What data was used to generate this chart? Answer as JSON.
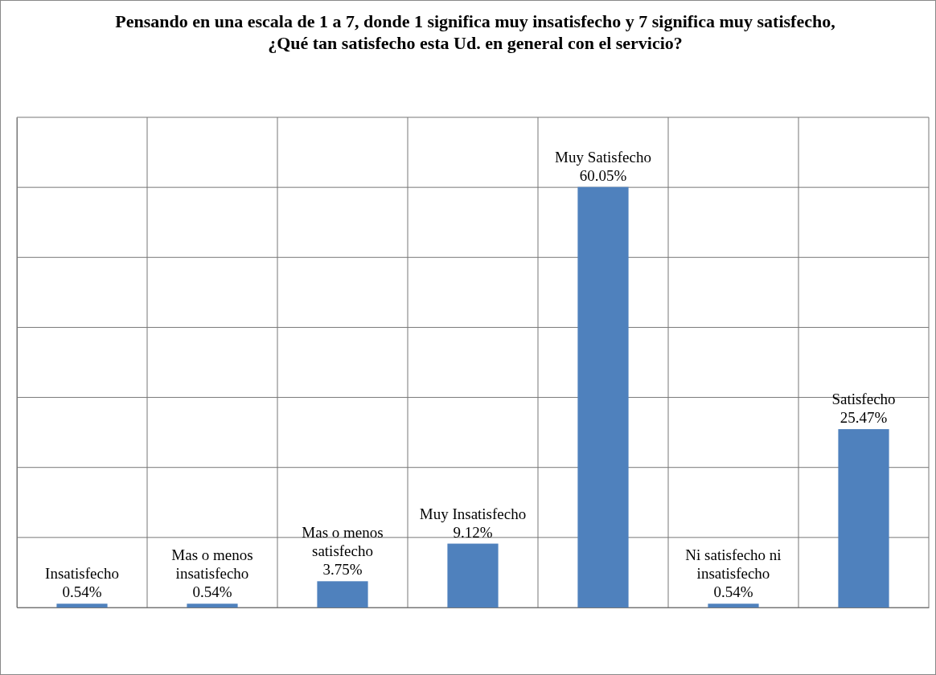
{
  "chart_data": {
    "type": "bar",
    "title": "Pensando en una escala de 1 a 7, donde 1 significa muy insatisfecho y 7 significa muy satisfecho,  ¿Qué tan satisfecho esta Ud. en general con el servicio?",
    "categories": [
      "Insatisfecho",
      "Mas o menos insatisfecho",
      "Mas o menos satisfecho",
      "Muy Insatisfecho",
      "Muy Satisfecho",
      "Ni satisfecho ni insatisfecho",
      "Satisfecho"
    ],
    "values": [
      0.54,
      0.54,
      3.75,
      9.12,
      60.05,
      0.54,
      25.47
    ],
    "value_labels": [
      "0.54%",
      "0.54%",
      "3.75%",
      "9.12%",
      "60.05%",
      "0.54%",
      "25.47%"
    ],
    "color": "#4f81bd",
    "ylim": [
      0,
      70
    ],
    "yticks": [
      {
        "value": 0,
        "label": null
      },
      {
        "value": 10,
        "label": null
      },
      {
        "value": 20,
        "label": null
      },
      {
        "value": 30,
        "label": null
      },
      {
        "value": 40,
        "label": null
      },
      {
        "value": 50,
        "label": null
      },
      {
        "value": 60,
        "label": null
      },
      {
        "value": 70,
        "label": null
      }
    ],
    "grid": true,
    "tick_labels": false
  }
}
